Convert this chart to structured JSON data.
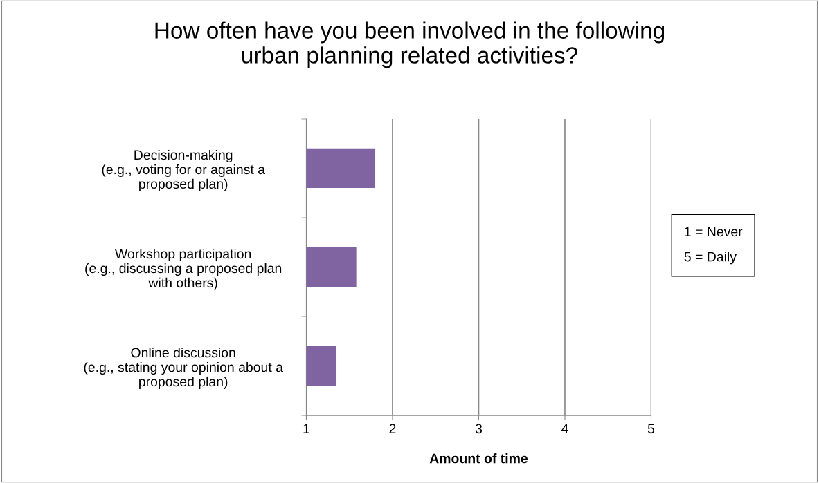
{
  "chart_data": {
    "type": "bar",
    "orientation": "horizontal",
    "title": "How often have you been involved in the following\nurban planning related activities?",
    "xlabel": "Amount of time",
    "categories": [
      "Decision-making\n(e.g., voting for or against a\nproposed plan)",
      "Workshop participation\n(e.g., discussing a proposed plan\nwith others)",
      "Online discussion\n(e.g., stating your opinion about a\nproposed plan)"
    ],
    "values": [
      1.8,
      1.58,
      1.35
    ],
    "color": "#8064a2",
    "xlim": [
      1,
      5
    ],
    "xticks": [
      1,
      2,
      3,
      4,
      5
    ],
    "grid": "x",
    "legend": false,
    "annotations": [
      "1 = Never",
      "5 = Daily"
    ]
  }
}
